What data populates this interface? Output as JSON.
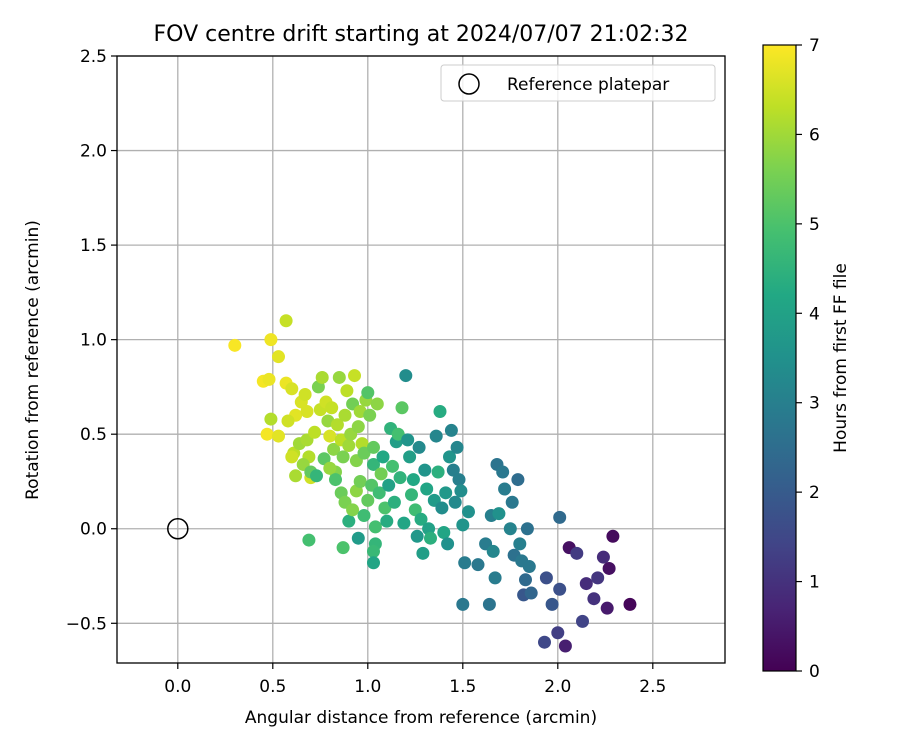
{
  "chart_data": {
    "type": "scatter",
    "title": "FOV centre drift starting at 2024/07/07 21:02:32",
    "xlabel": "Angular distance from reference (arcmin)",
    "ylabel": "Rotation from reference (arcmin)",
    "xlim": [
      -0.32,
      2.88
    ],
    "ylim": [
      -0.71,
      2.5
    ],
    "xticks": [
      "0.0",
      "0.5",
      "1.0",
      "1.5",
      "2.0",
      "2.5"
    ],
    "xtick_values": [
      0,
      0.5,
      1.0,
      1.5,
      2.0,
      2.5
    ],
    "yticks": [
      "−0.5",
      "0.0",
      "0.5",
      "1.0",
      "1.5",
      "2.0",
      "2.5"
    ],
    "ytick_values": [
      -0.5,
      0,
      0.5,
      1.0,
      1.5,
      2.0,
      2.5
    ],
    "grid": true,
    "legend": {
      "placement": "top-right",
      "entries": [
        "Reference platepar"
      ]
    },
    "reference_point": {
      "x": 0.0,
      "y": 0.0
    },
    "colorbar": {
      "label": "Hours from first FF file",
      "colormap": "viridis",
      "range": [
        0,
        7
      ],
      "ticks": [
        "0",
        "1",
        "2",
        "3",
        "4",
        "5",
        "6",
        "7"
      ],
      "tick_values": [
        0,
        1,
        2,
        3,
        4,
        5,
        6,
        7
      ]
    },
    "points": [
      {
        "x": 0.3,
        "y": 0.97,
        "h": 6.95
      },
      {
        "x": 0.45,
        "y": 0.78,
        "h": 6.9
      },
      {
        "x": 0.49,
        "y": 1.0,
        "h": 6.85
      },
      {
        "x": 0.48,
        "y": 0.79,
        "h": 6.8
      },
      {
        "x": 0.57,
        "y": 1.1,
        "h": 6.4
      },
      {
        "x": 0.53,
        "y": 0.91,
        "h": 6.7
      },
      {
        "x": 0.47,
        "y": 0.5,
        "h": 6.9
      },
      {
        "x": 0.49,
        "y": 0.58,
        "h": 6.2
      },
      {
        "x": 0.53,
        "y": 0.49,
        "h": 6.7
      },
      {
        "x": 0.57,
        "y": 0.77,
        "h": 6.8
      },
      {
        "x": 0.6,
        "y": 0.74,
        "h": 6.6
      },
      {
        "x": 0.62,
        "y": 0.6,
        "h": 6.7
      },
      {
        "x": 0.58,
        "y": 0.57,
        "h": 6.5
      },
      {
        "x": 0.61,
        "y": 0.4,
        "h": 6.3
      },
      {
        "x": 0.62,
        "y": 0.28,
        "h": 6.1
      },
      {
        "x": 0.64,
        "y": 0.45,
        "h": 6.0
      },
      {
        "x": 0.65,
        "y": 0.67,
        "h": 6.6
      },
      {
        "x": 0.67,
        "y": 0.71,
        "h": 6.5
      },
      {
        "x": 0.68,
        "y": 0.62,
        "h": 6.6
      },
      {
        "x": 0.69,
        "y": 0.38,
        "h": 6.2
      },
      {
        "x": 0.7,
        "y": 0.27,
        "h": 6.5
      },
      {
        "x": 0.68,
        "y": 0.47,
        "h": 6.1
      },
      {
        "x": 0.72,
        "y": 0.51,
        "h": 6.3
      },
      {
        "x": 0.74,
        "y": 0.75,
        "h": 5.6
      },
      {
        "x": 0.75,
        "y": 0.63,
        "h": 6.4
      },
      {
        "x": 0.76,
        "y": 0.8,
        "h": 6.1
      },
      {
        "x": 0.78,
        "y": 0.67,
        "h": 6.5
      },
      {
        "x": 0.79,
        "y": 0.57,
        "h": 5.9
      },
      {
        "x": 0.8,
        "y": 0.49,
        "h": 6.6
      },
      {
        "x": 0.81,
        "y": 0.64,
        "h": 6.4
      },
      {
        "x": 0.82,
        "y": 0.42,
        "h": 5.8
      },
      {
        "x": 0.83,
        "y": 0.3,
        "h": 5.7
      },
      {
        "x": 0.84,
        "y": 0.55,
        "h": 6.2
      },
      {
        "x": 0.85,
        "y": 0.8,
        "h": 5.9
      },
      {
        "x": 0.86,
        "y": 0.47,
        "h": 6.3
      },
      {
        "x": 0.87,
        "y": 0.38,
        "h": 5.6
      },
      {
        "x": 0.88,
        "y": 0.6,
        "h": 6.1
      },
      {
        "x": 0.89,
        "y": 0.73,
        "h": 6.3
      },
      {
        "x": 0.9,
        "y": 0.44,
        "h": 6.0
      },
      {
        "x": 0.91,
        "y": 0.5,
        "h": 5.9
      },
      {
        "x": 0.92,
        "y": 0.66,
        "h": 5.5
      },
      {
        "x": 0.93,
        "y": 0.81,
        "h": 6.4
      },
      {
        "x": 0.94,
        "y": 0.36,
        "h": 5.7
      },
      {
        "x": 0.95,
        "y": 0.54,
        "h": 5.8
      },
      {
        "x": 0.96,
        "y": 0.62,
        "h": 6.0
      },
      {
        "x": 0.97,
        "y": 0.45,
        "h": 6.2
      },
      {
        "x": 0.98,
        "y": 0.4,
        "h": 5.4
      },
      {
        "x": 0.99,
        "y": 0.68,
        "h": 5.9
      },
      {
        "x": 1.0,
        "y": 0.72,
        "h": 5.1
      },
      {
        "x": 1.01,
        "y": 0.6,
        "h": 5.6
      },
      {
        "x": 1.03,
        "y": 0.43,
        "h": 5.3
      },
      {
        "x": 1.05,
        "y": 0.66,
        "h": 5.8
      },
      {
        "x": 0.6,
        "y": 0.38,
        "h": 6.5
      },
      {
        "x": 0.66,
        "y": 0.34,
        "h": 5.9
      },
      {
        "x": 0.7,
        "y": 0.3,
        "h": 5.3
      },
      {
        "x": 0.73,
        "y": 0.28,
        "h": 4.6
      },
      {
        "x": 0.69,
        "y": -0.06,
        "h": 4.9
      },
      {
        "x": 0.77,
        "y": 0.37,
        "h": 5.2
      },
      {
        "x": 0.8,
        "y": 0.32,
        "h": 5.9
      },
      {
        "x": 0.83,
        "y": 0.26,
        "h": 5.0
      },
      {
        "x": 0.86,
        "y": 0.19,
        "h": 5.4
      },
      {
        "x": 0.87,
        "y": -0.1,
        "h": 5.0
      },
      {
        "x": 0.88,
        "y": 0.14,
        "h": 5.6
      },
      {
        "x": 0.9,
        "y": 0.04,
        "h": 4.4
      },
      {
        "x": 0.92,
        "y": 0.1,
        "h": 5.7
      },
      {
        "x": 0.94,
        "y": 0.2,
        "h": 5.8
      },
      {
        "x": 0.96,
        "y": 0.25,
        "h": 5.5
      },
      {
        "x": 0.98,
        "y": 0.07,
        "h": 4.8
      },
      {
        "x": 0.95,
        "y": -0.05,
        "h": 3.8
      },
      {
        "x": 1.0,
        "y": 0.15,
        "h": 5.3
      },
      {
        "x": 1.02,
        "y": 0.23,
        "h": 5.1
      },
      {
        "x": 1.03,
        "y": 0.34,
        "h": 4.6
      },
      {
        "x": 1.04,
        "y": 0.01,
        "h": 4.9
      },
      {
        "x": 1.04,
        "y": -0.08,
        "h": 4.6
      },
      {
        "x": 1.03,
        "y": -0.12,
        "h": 4.7
      },
      {
        "x": 1.03,
        "y": -0.18,
        "h": 4.1
      },
      {
        "x": 1.06,
        "y": 0.19,
        "h": 4.8
      },
      {
        "x": 1.07,
        "y": 0.29,
        "h": 5.5
      },
      {
        "x": 1.08,
        "y": 0.38,
        "h": 4.2
      },
      {
        "x": 1.09,
        "y": 0.11,
        "h": 5.0
      },
      {
        "x": 1.1,
        "y": 0.04,
        "h": 4.3
      },
      {
        "x": 1.11,
        "y": 0.23,
        "h": 4.0
      },
      {
        "x": 1.12,
        "y": 0.53,
        "h": 4.5
      },
      {
        "x": 1.13,
        "y": 0.33,
        "h": 4.9
      },
      {
        "x": 1.14,
        "y": 0.14,
        "h": 4.4
      },
      {
        "x": 1.15,
        "y": 0.46,
        "h": 3.9
      },
      {
        "x": 1.16,
        "y": 0.5,
        "h": 4.9
      },
      {
        "x": 1.17,
        "y": 0.27,
        "h": 4.5
      },
      {
        "x": 1.18,
        "y": 0.64,
        "h": 5.2
      },
      {
        "x": 1.19,
        "y": 0.03,
        "h": 4.1
      },
      {
        "x": 1.2,
        "y": 0.81,
        "h": 3.4
      },
      {
        "x": 1.21,
        "y": 0.47,
        "h": 3.6
      },
      {
        "x": 1.22,
        "y": 0.38,
        "h": 3.9
      },
      {
        "x": 1.23,
        "y": 0.18,
        "h": 4.6
      },
      {
        "x": 1.24,
        "y": 0.26,
        "h": 4.2
      },
      {
        "x": 1.25,
        "y": 0.1,
        "h": 4.8
      },
      {
        "x": 1.26,
        "y": -0.04,
        "h": 3.7
      },
      {
        "x": 1.27,
        "y": 0.43,
        "h": 3.3
      },
      {
        "x": 1.28,
        "y": 0.05,
        "h": 4.3
      },
      {
        "x": 1.29,
        "y": -0.13,
        "h": 3.9
      },
      {
        "x": 1.3,
        "y": 0.31,
        "h": 3.6
      },
      {
        "x": 1.31,
        "y": 0.21,
        "h": 4.1
      },
      {
        "x": 1.32,
        "y": 0.0,
        "h": 4.0
      },
      {
        "x": 1.33,
        "y": -0.05,
        "h": 4.4
      },
      {
        "x": 1.35,
        "y": 0.15,
        "h": 3.8
      },
      {
        "x": 1.36,
        "y": 0.49,
        "h": 3.2
      },
      {
        "x": 1.37,
        "y": 0.3,
        "h": 4.4
      },
      {
        "x": 1.38,
        "y": 0.62,
        "h": 4.3
      },
      {
        "x": 1.39,
        "y": 0.11,
        "h": 3.4
      },
      {
        "x": 1.4,
        "y": -0.02,
        "h": 4.1
      },
      {
        "x": 1.41,
        "y": 0.19,
        "h": 3.7
      },
      {
        "x": 1.42,
        "y": -0.08,
        "h": 3.5
      },
      {
        "x": 1.43,
        "y": 0.38,
        "h": 3.6
      },
      {
        "x": 1.44,
        "y": 0.52,
        "h": 3.1
      },
      {
        "x": 1.45,
        "y": 0.31,
        "h": 3.0
      },
      {
        "x": 1.46,
        "y": 0.14,
        "h": 3.3
      },
      {
        "x": 1.47,
        "y": 0.43,
        "h": 3.2
      },
      {
        "x": 1.48,
        "y": 0.26,
        "h": 3.0
      },
      {
        "x": 1.49,
        "y": 0.2,
        "h": 3.4
      },
      {
        "x": 1.5,
        "y": 0.02,
        "h": 3.6
      },
      {
        "x": 1.5,
        "y": -0.4,
        "h": 2.8
      },
      {
        "x": 1.51,
        "y": -0.18,
        "h": 2.9
      },
      {
        "x": 1.53,
        "y": 0.09,
        "h": 3.5
      },
      {
        "x": 1.58,
        "y": -0.19,
        "h": 2.8
      },
      {
        "x": 1.62,
        "y": -0.08,
        "h": 2.9
      },
      {
        "x": 1.64,
        "y": -0.4,
        "h": 2.7
      },
      {
        "x": 1.65,
        "y": 0.07,
        "h": 3.0
      },
      {
        "x": 1.66,
        "y": -0.12,
        "h": 3.2
      },
      {
        "x": 1.67,
        "y": -0.26,
        "h": 2.9
      },
      {
        "x": 1.68,
        "y": 0.34,
        "h": 2.7
      },
      {
        "x": 1.69,
        "y": 0.08,
        "h": 3.5
      },
      {
        "x": 1.71,
        "y": 0.3,
        "h": 2.8
      },
      {
        "x": 1.72,
        "y": 0.21,
        "h": 2.9
      },
      {
        "x": 1.75,
        "y": 0.0,
        "h": 3.1
      },
      {
        "x": 1.76,
        "y": 0.14,
        "h": 2.8
      },
      {
        "x": 1.77,
        "y": -0.14,
        "h": 2.6
      },
      {
        "x": 1.79,
        "y": 0.26,
        "h": 2.5
      },
      {
        "x": 1.8,
        "y": -0.08,
        "h": 3.0
      },
      {
        "x": 1.81,
        "y": -0.17,
        "h": 2.8
      },
      {
        "x": 1.82,
        "y": -0.35,
        "h": 1.9
      },
      {
        "x": 1.83,
        "y": -0.27,
        "h": 2.4
      },
      {
        "x": 1.84,
        "y": 0.0,
        "h": 2.6
      },
      {
        "x": 1.85,
        "y": -0.2,
        "h": 2.8
      },
      {
        "x": 1.86,
        "y": -0.34,
        "h": 2.3
      },
      {
        "x": 1.93,
        "y": -0.6,
        "h": 1.5
      },
      {
        "x": 1.94,
        "y": -0.26,
        "h": 1.7
      },
      {
        "x": 1.97,
        "y": -0.4,
        "h": 1.9
      },
      {
        "x": 2.0,
        "y": -0.55,
        "h": 1.3
      },
      {
        "x": 2.01,
        "y": -0.32,
        "h": 1.7
      },
      {
        "x": 2.01,
        "y": 0.06,
        "h": 2.4
      },
      {
        "x": 2.04,
        "y": -0.62,
        "h": 0.6
      },
      {
        "x": 2.06,
        "y": -0.1,
        "h": 0.3
      },
      {
        "x": 2.1,
        "y": -0.13,
        "h": 1.2
      },
      {
        "x": 2.13,
        "y": -0.49,
        "h": 1.4
      },
      {
        "x": 2.15,
        "y": -0.29,
        "h": 0.9
      },
      {
        "x": 2.19,
        "y": -0.37,
        "h": 1.0
      },
      {
        "x": 2.21,
        "y": -0.26,
        "h": 1.1
      },
      {
        "x": 2.24,
        "y": -0.15,
        "h": 0.9
      },
      {
        "x": 2.26,
        "y": -0.42,
        "h": 0.5
      },
      {
        "x": 2.27,
        "y": -0.21,
        "h": 0.3
      },
      {
        "x": 2.29,
        "y": -0.04,
        "h": 0.2
      },
      {
        "x": 2.38,
        "y": -0.4,
        "h": 0.1
      }
    ]
  }
}
